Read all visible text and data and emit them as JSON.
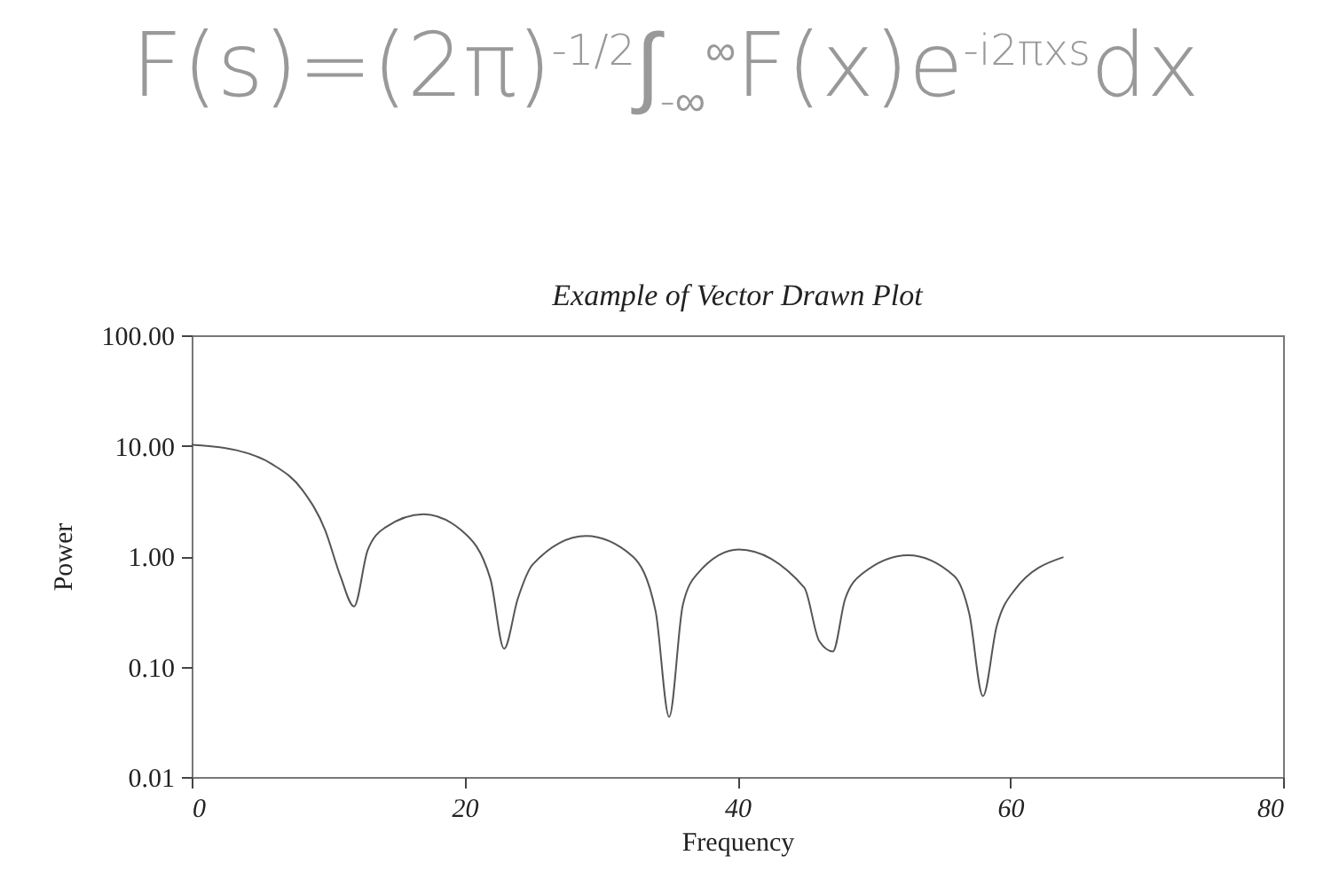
{
  "chart_data": {
    "type": "line",
    "title": "Example of Vector Drawn Plot",
    "xlabel": "Frequency",
    "ylabel": "Power",
    "annotations": [
      "F(s)=(2π)$^{-1/2}$∫$_{-∞}$$^{∞}$F(x)e$^{-i2πxs}$dx"
    ],
    "x": [
      0,
      3.3,
      5.9,
      8.1,
      9.8,
      10.9,
      11.9,
      12.9,
      14.2,
      17.0,
      19.8,
      21.9,
      22.9,
      23.9,
      25.0,
      28.9,
      32.3,
      34.0,
      35.0,
      36.0,
      37.1,
      40.1,
      44.9,
      46.0,
      47.0,
      47.9,
      49.2,
      52.5,
      55.9,
      57.0,
      58.0,
      59.0,
      60.3,
      63.9
    ],
    "series": [
      {
        "color": "#555555",
        "values": [
          10.2,
          9.1,
          6.8,
          4.0,
          1.7,
          0.66,
          0.35,
          1.13,
          1.82,
          2.4,
          1.7,
          0.62,
          0.145,
          0.41,
          0.84,
          1.52,
          1.0,
          0.32,
          0.035,
          0.36,
          0.7,
          1.15,
          0.52,
          0.17,
          0.137,
          0.41,
          0.7,
          1.02,
          0.66,
          0.3,
          0.054,
          0.23,
          0.49,
          0.98
        ]
      }
    ],
    "log": "y",
    "xlim": [
      0,
      80
    ],
    "xticks": [
      0,
      20,
      40,
      60,
      80
    ],
    "ylim": [
      0.01,
      100
    ],
    "yticks": [
      {
        "value": 0.01,
        "label": "0.01"
      },
      {
        "value": 0.1,
        "label": "0.10"
      },
      {
        "value": 1,
        "label": "1.00"
      },
      {
        "value": 10,
        "label": "10.00"
      },
      {
        "value": 100,
        "label": "100.00"
      }
    ],
    "marker": "none",
    "line_style": "solid"
  }
}
